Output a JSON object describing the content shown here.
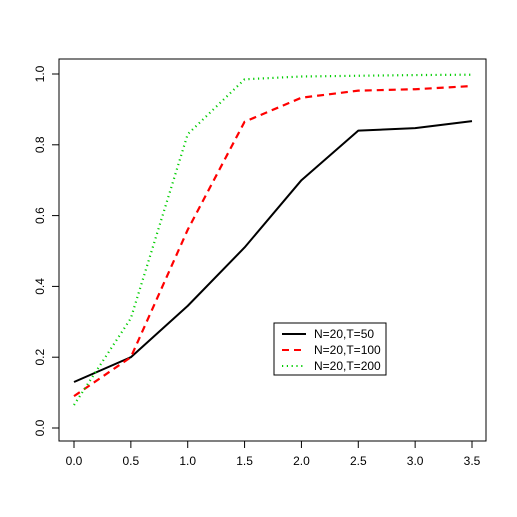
{
  "chart_data": {
    "type": "line",
    "title": "",
    "xlabel": "",
    "ylabel": "",
    "x": [
      0.0,
      0.5,
      1.0,
      1.5,
      2.0,
      2.5,
      3.0,
      3.5
    ],
    "xlim": [
      0.0,
      3.5
    ],
    "ylim": [
      0.0,
      1.0
    ],
    "x_ticks": [
      "0.0",
      "0.5",
      "1.0",
      "1.5",
      "2.0",
      "2.5",
      "3.0",
      "3.5"
    ],
    "y_ticks": [
      "0.0",
      "0.2",
      "0.4",
      "0.6",
      "0.8",
      "1.0"
    ],
    "grid": false,
    "legend_position": "lower-right",
    "series": [
      {
        "name": "N=20,T=50",
        "color": "#000000",
        "dash": "solid",
        "values": [
          0.13,
          0.2,
          0.345,
          0.51,
          0.7,
          0.84,
          0.847,
          0.867
        ]
      },
      {
        "name": "N=20,T=100",
        "color": "#ff0000",
        "dash": "dashed",
        "values": [
          0.09,
          0.2,
          0.56,
          0.865,
          0.933,
          0.953,
          0.957,
          0.966
        ]
      },
      {
        "name": "N=20,T=200",
        "color": "#00cd00",
        "dash": "dotted",
        "values": [
          0.065,
          0.31,
          0.83,
          0.985,
          0.993,
          0.995,
          0.997,
          0.998
        ]
      }
    ]
  }
}
